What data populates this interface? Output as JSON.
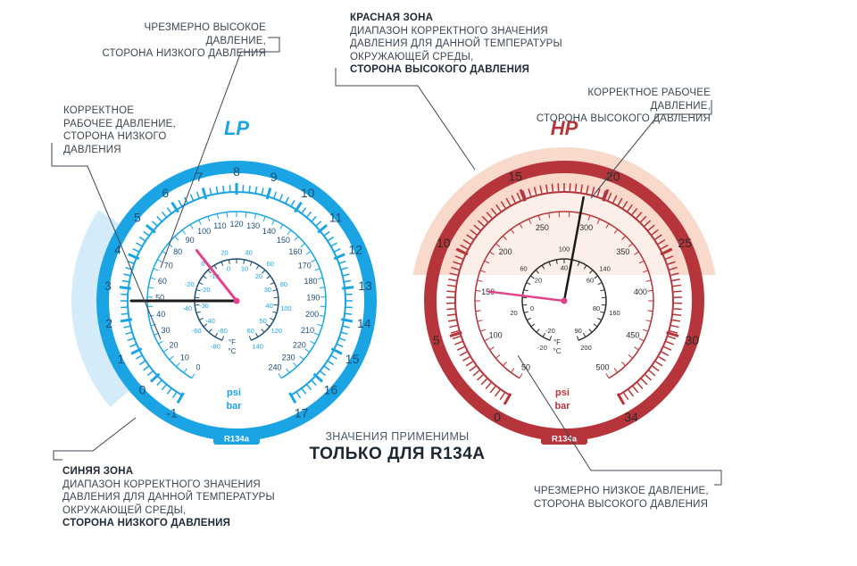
{
  "annotations": {
    "lp_excess": [
      "ЧРЕЗМЕРНО ВЫСОКОЕ ДАВЛЕНИЕ,",
      "СТОРОНА НИЗКОГО ДАВЛЕНИЯ"
    ],
    "lp_correct": [
      "КОРРЕКТНОЕ",
      "РАБОЧЕЕ ДАВЛЕНИЕ,",
      "СТОРОНА НИЗКОГО",
      "ДАВЛЕНИЯ"
    ],
    "red_zone": {
      "title": "КРАСНАЯ ЗОНА",
      "lines": [
        "ДИАПАЗОН КОРРЕКТНОГО ЗНАЧЕНИЯ",
        "ДАВЛЕНИЯ ДЛЯ ДАННОЙ ТЕМПЕРАТУРЫ",
        "ОКРУЖАЮЩЕЙ СРЕДЫ,"
      ],
      "bold_tail": "СТОРОНА ВЫСОКОГО ДАВЛЕНИЯ"
    },
    "hp_correct": [
      "КОРРЕКТНОЕ РАБОЧЕЕ ДАВЛЕНИЕ,",
      "СТОРОНА ВЫСОКОГО ДАВЛЕНИЯ"
    ],
    "blue_zone": {
      "title": "СИНЯЯ ЗОНА",
      "lines": [
        "ДИАПАЗОН КОРРЕКТНОГО ЗНАЧЕНИЯ",
        "ДАВЛЕНИЯ ДЛЯ ДАННОЙ ТЕМПЕРАТУРЫ",
        "ОКРУЖАЮЩЕЙ СРЕДЫ,"
      ],
      "bold_tail": "СТОРОНА НИЗКОГО ДАВЛЕНИЯ"
    },
    "hp_low": [
      "ЧРЕЗМЕРНО НИЗКОЕ ДАВЛЕНИЕ,",
      "СТОРОНА ВЫСОКОГО ДАВЛЕНИЯ"
    ]
  },
  "center": {
    "small": "ЗНАЧЕНИЯ ПРИМЕНИМЫ",
    "big": "ТОЛЬКО ДЛЯ R134A"
  },
  "gauges": {
    "lp": {
      "title": "LP",
      "badge": "R134a",
      "unit_psi": "psi",
      "unit_bar": "bar",
      "color": "#1ba4e3",
      "dark": "#1f4e73",
      "zone_color": "#cfe9f8",
      "bar_scale": {
        "min": -1,
        "max": 17,
        "labels": [
          -1,
          0,
          1,
          2,
          3,
          4,
          5,
          6,
          7,
          8,
          9,
          10,
          11,
          12,
          13,
          14,
          15,
          16,
          17
        ]
      },
      "psi_labels": [
        0,
        10,
        20,
        30,
        40,
        50,
        60,
        70,
        80,
        90,
        100,
        110,
        120,
        130,
        140,
        150,
        160,
        170,
        180,
        190,
        200,
        210,
        220,
        230,
        240
      ],
      "temp_f_labels": [
        -80,
        -60,
        -40,
        -20,
        0,
        20,
        40,
        60,
        80,
        100,
        120,
        140
      ],
      "temp_c_labels": [
        -60,
        -40,
        -30,
        -20,
        -10,
        0,
        10,
        20,
        30,
        40,
        50,
        60
      ],
      "temp_f_unit": "°F",
      "temp_c_unit": "°C",
      "needle_bar": 2.6,
      "pink_needle_bar": 5.7
    },
    "hp": {
      "title": "HP",
      "badge": "R134a",
      "unit_psi": "psi",
      "unit_bar": "bar",
      "color": "#b5353a",
      "dark": "#2b2b2b",
      "zone_color": "#f8d9cc",
      "bar_labels": [
        0,
        5,
        10,
        15,
        20,
        25,
        30,
        34
      ],
      "psi_labels": [
        50,
        100,
        150,
        200,
        250,
        300,
        350,
        400,
        450,
        500
      ],
      "temp_f_labels": [
        -20,
        20,
        60,
        100,
        140,
        160,
        200
      ],
      "temp_c_labels": [
        -20,
        0,
        20,
        40,
        60,
        80,
        90
      ],
      "temp_f_unit": "°F",
      "temp_c_unit": "°C",
      "needle_bar": 18.2,
      "pink_needle_bar": 7.6
    }
  },
  "colors": {
    "text": "#3b4753",
    "lp_blue": "#1ba4e3",
    "hp_red": "#b5353a",
    "needle": "#1a1a1a",
    "needle_pink": "#e0438c"
  }
}
